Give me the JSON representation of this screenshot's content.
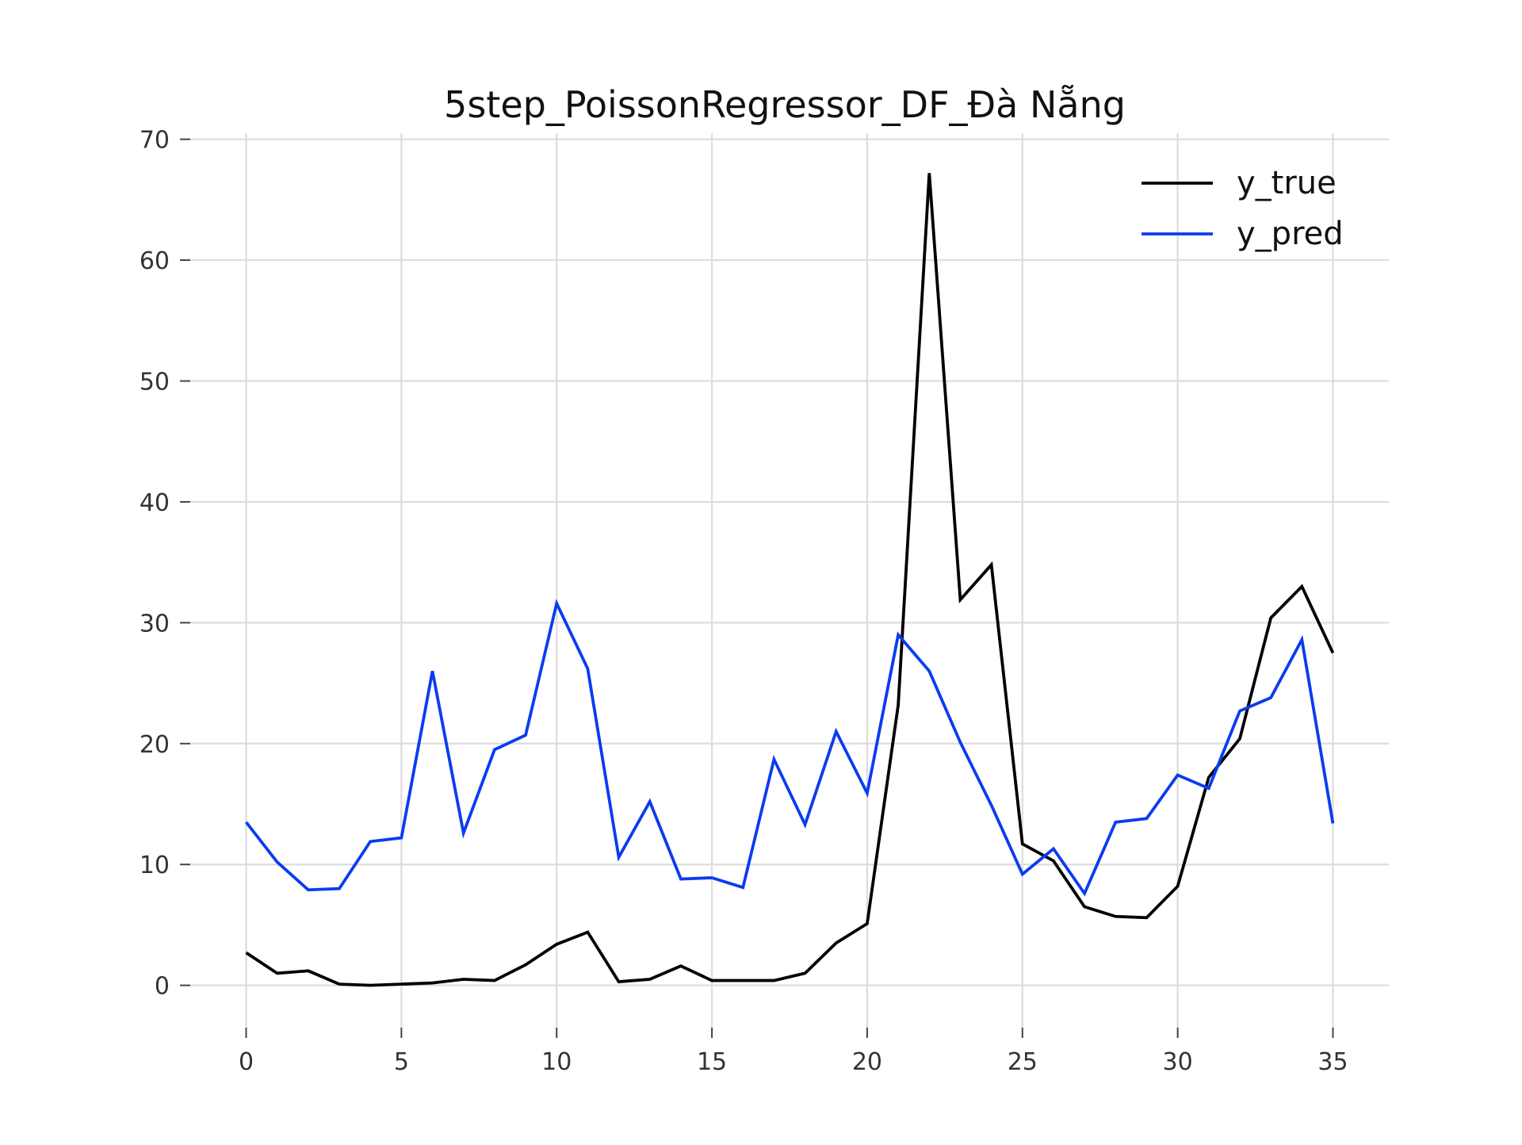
{
  "chart_data": {
    "type": "line",
    "title": "5step_PoissonRegressor_DF_Đà Nẵng",
    "xlabel": "",
    "ylabel": "",
    "xlim": [
      -1.8,
      36.8
    ],
    "ylim": [
      -3.5,
      70.5
    ],
    "xticks": [
      0,
      5,
      10,
      15,
      20,
      25,
      30,
      35
    ],
    "yticks": [
      0,
      10,
      20,
      30,
      40,
      50,
      60,
      70
    ],
    "grid": true,
    "legend_position": "top-right",
    "x": [
      0,
      1,
      2,
      3,
      4,
      5,
      6,
      7,
      8,
      9,
      10,
      11,
      12,
      13,
      14,
      15,
      16,
      17,
      18,
      19,
      20,
      21,
      22,
      23,
      24,
      25,
      26,
      27,
      28,
      29,
      30,
      31,
      32,
      33,
      34,
      35
    ],
    "series": [
      {
        "name": "y_true",
        "color": "#000000",
        "values": [
          2.7,
          1.0,
          1.2,
          0.1,
          0.0,
          0.1,
          0.2,
          0.5,
          0.4,
          1.7,
          3.4,
          4.4,
          0.3,
          0.5,
          1.6,
          0.4,
          0.4,
          0.4,
          1.0,
          3.5,
          5.1,
          23.2,
          67.2,
          31.9,
          34.8,
          11.7,
          10.3,
          6.5,
          5.7,
          5.6,
          8.2,
          17.2,
          20.4,
          30.4,
          33.0,
          27.5
        ]
      },
      {
        "name": "y_pred",
        "color": "#0a3cf0",
        "values": [
          13.5,
          10.2,
          7.9,
          8.0,
          11.9,
          12.2,
          26.0,
          12.6,
          19.5,
          20.7,
          31.6,
          26.2,
          10.6,
          15.2,
          8.8,
          8.9,
          8.1,
          18.7,
          13.3,
          21.0,
          15.9,
          29.0,
          26.0,
          20.1,
          14.9,
          9.2,
          11.3,
          7.6,
          13.5,
          13.8,
          17.4,
          16.3,
          22.7,
          23.8,
          28.6,
          13.4
        ]
      }
    ]
  }
}
